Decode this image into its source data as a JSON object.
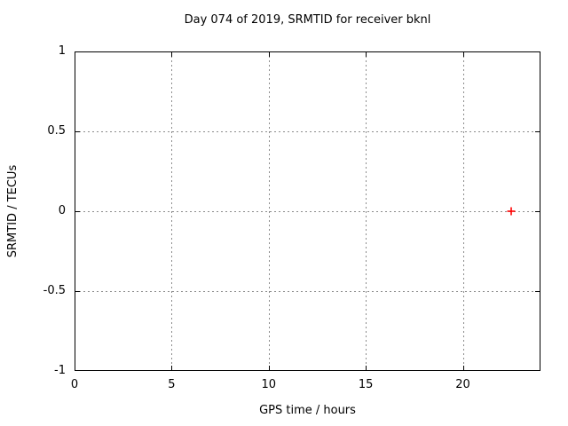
{
  "window": {
    "background": "#ffffff"
  },
  "chart_data": {
    "type": "scatter",
    "title": "Day 074 of 2019, SRMTID for receiver bknl",
    "xlabel": "GPS time / hours",
    "ylabel": "SRMTID / TECUs",
    "xlim": [
      0,
      24
    ],
    "ylim": [
      -1,
      1
    ],
    "xticks": [
      {
        "value": 0,
        "label": "0"
      },
      {
        "value": 5,
        "label": "5"
      },
      {
        "value": 10,
        "label": "10"
      },
      {
        "value": 15,
        "label": "15"
      },
      {
        "value": 20,
        "label": "20"
      }
    ],
    "yticks": [
      {
        "value": 1,
        "label": "1"
      },
      {
        "value": 0.5,
        "label": "0.5"
      },
      {
        "value": 0,
        "label": "0"
      },
      {
        "value": -0.5,
        "label": "-0.5"
      },
      {
        "value": -1,
        "label": "-1"
      }
    ],
    "grid": true,
    "legend": "none",
    "colors": {
      "axis": "#000000",
      "grid": "#8c8c8c",
      "marker": "#ff0000",
      "background": "#ffffff"
    },
    "series": [
      {
        "name": "SRMTID",
        "marker": "plus",
        "color": "#ff0000",
        "points": [
          {
            "x": 22.5,
            "y": 0
          }
        ]
      }
    ]
  }
}
